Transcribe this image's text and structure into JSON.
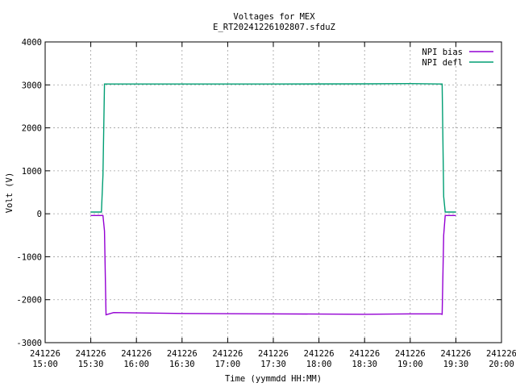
{
  "chart_data": {
    "type": "line",
    "title": "Voltages for MEX",
    "subtitle": "E_RT20241226102807.sfduZ",
    "xlabel": "Time (yymmdd HH:MM)",
    "ylabel": "Volt (V)",
    "ylim": [
      -3000,
      4000
    ],
    "yticks": [
      -3000,
      -2000,
      -1000,
      0,
      1000,
      2000,
      3000,
      4000
    ],
    "xlim": [
      "241226 15:00",
      "241226 20:00"
    ],
    "xticks": [
      {
        "date": "241226",
        "time": "15:00"
      },
      {
        "date": "241226",
        "time": "15:30"
      },
      {
        "date": "241226",
        "time": "16:00"
      },
      {
        "date": "241226",
        "time": "16:30"
      },
      {
        "date": "241226",
        "time": "17:00"
      },
      {
        "date": "241226",
        "time": "17:30"
      },
      {
        "date": "241226",
        "time": "18:00"
      },
      {
        "date": "241226",
        "time": "18:30"
      },
      {
        "date": "241226",
        "time": "19:00"
      },
      {
        "date": "241226",
        "time": "19:30"
      },
      {
        "date": "241226",
        "time": "20:00"
      }
    ],
    "grid": true,
    "legend_position": "top-right",
    "series": [
      {
        "name": "NPI bias",
        "color": "#9400d3",
        "x": [
          "15:30",
          "15:38",
          "15:39",
          "15:40",
          "15:45",
          "16:30",
          "17:30",
          "18:30",
          "19:00",
          "19:20",
          "19:21",
          "19:22",
          "19:23",
          "19:30"
        ],
        "y": [
          -40,
          -40,
          -400,
          -2350,
          -2300,
          -2320,
          -2330,
          -2340,
          -2330,
          -2330,
          -2340,
          -500,
          -40,
          -40
        ]
      },
      {
        "name": "NPI defl",
        "color": "#009e73",
        "x": [
          "15:30",
          "15:37",
          "15:38",
          "15:39",
          "15:40",
          "16:30",
          "17:30",
          "18:30",
          "19:00",
          "19:20",
          "19:21",
          "19:22",
          "19:23",
          "19:30"
        ],
        "y": [
          40,
          40,
          900,
          3020,
          3020,
          3020,
          3020,
          3025,
          3030,
          3020,
          3020,
          400,
          40,
          40
        ]
      }
    ]
  }
}
